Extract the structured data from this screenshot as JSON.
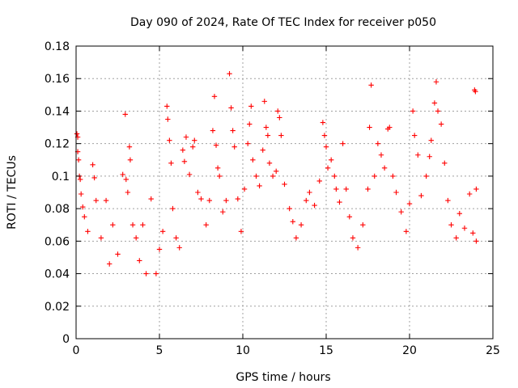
{
  "chart_data": {
    "type": "scatter",
    "title": "Day 090 of 2024, Rate Of TEC Index for receiver p050",
    "xlabel": "GPS time / hours",
    "ylabel": "ROTI / TECUs",
    "xlim": [
      0,
      25
    ],
    "ylim": [
      0,
      0.18
    ],
    "xticks": [
      0,
      5,
      10,
      15,
      20,
      25
    ],
    "yticks": [
      0,
      0.02,
      0.04,
      0.06,
      0.08,
      0.1,
      0.12,
      0.14,
      0.16,
      0.18
    ],
    "ytick_labels": [
      "0",
      "0.02",
      "0.04",
      "0.06",
      "0.08",
      "0.1",
      "0.12",
      "0.14",
      "0.16",
      "0.18"
    ],
    "grid": true,
    "marker": "plus",
    "color": "#ff0000",
    "series": [
      {
        "points": [
          [
            0.05,
            0.126
          ],
          [
            0.1,
            0.124
          ],
          [
            0.1,
            0.115
          ],
          [
            0.15,
            0.11
          ],
          [
            0.2,
            0.1
          ],
          [
            0.25,
            0.098
          ],
          [
            0.3,
            0.089
          ],
          [
            0.4,
            0.081
          ],
          [
            0.5,
            0.075
          ],
          [
            0.7,
            0.066
          ],
          [
            1.0,
            0.107
          ],
          [
            1.1,
            0.099
          ],
          [
            1.2,
            0.085
          ],
          [
            1.5,
            0.062
          ],
          [
            1.8,
            0.085
          ],
          [
            2.0,
            0.046
          ],
          [
            2.2,
            0.07
          ],
          [
            2.5,
            0.052
          ],
          [
            2.8,
            0.101
          ],
          [
            2.95,
            0.138
          ],
          [
            3.0,
            0.098
          ],
          [
            3.1,
            0.09
          ],
          [
            3.2,
            0.118
          ],
          [
            3.25,
            0.11
          ],
          [
            3.4,
            0.07
          ],
          [
            3.6,
            0.062
          ],
          [
            3.8,
            0.048
          ],
          [
            4.0,
            0.07
          ],
          [
            4.2,
            0.04
          ],
          [
            4.5,
            0.086
          ],
          [
            4.8,
            0.04
          ],
          [
            5.0,
            0.055
          ],
          [
            5.2,
            0.066
          ],
          [
            5.45,
            0.143
          ],
          [
            5.5,
            0.135
          ],
          [
            5.6,
            0.122
          ],
          [
            5.7,
            0.108
          ],
          [
            5.8,
            0.08
          ],
          [
            6.0,
            0.062
          ],
          [
            6.2,
            0.056
          ],
          [
            6.4,
            0.116
          ],
          [
            6.5,
            0.109
          ],
          [
            6.6,
            0.124
          ],
          [
            6.8,
            0.101
          ],
          [
            7.0,
            0.118
          ],
          [
            7.1,
            0.122
          ],
          [
            7.3,
            0.09
          ],
          [
            7.5,
            0.086
          ],
          [
            7.8,
            0.07
          ],
          [
            8.0,
            0.085
          ],
          [
            8.2,
            0.128
          ],
          [
            8.3,
            0.149
          ],
          [
            8.4,
            0.119
          ],
          [
            8.5,
            0.105
          ],
          [
            8.6,
            0.1
          ],
          [
            8.8,
            0.078
          ],
          [
            9.0,
            0.085
          ],
          [
            9.2,
            0.163
          ],
          [
            9.3,
            0.142
          ],
          [
            9.4,
            0.128
          ],
          [
            9.5,
            0.118
          ],
          [
            9.7,
            0.086
          ],
          [
            9.9,
            0.066
          ],
          [
            10.1,
            0.092
          ],
          [
            10.3,
            0.12
          ],
          [
            10.4,
            0.132
          ],
          [
            10.5,
            0.143
          ],
          [
            10.6,
            0.11
          ],
          [
            10.8,
            0.1
          ],
          [
            11.0,
            0.094
          ],
          [
            11.2,
            0.116
          ],
          [
            11.3,
            0.146
          ],
          [
            11.4,
            0.13
          ],
          [
            11.5,
            0.125
          ],
          [
            11.6,
            0.108
          ],
          [
            11.8,
            0.1
          ],
          [
            12.0,
            0.103
          ],
          [
            12.1,
            0.14
          ],
          [
            12.2,
            0.136
          ],
          [
            12.3,
            0.125
          ],
          [
            12.5,
            0.095
          ],
          [
            12.8,
            0.08
          ],
          [
            13.0,
            0.072
          ],
          [
            13.2,
            0.062
          ],
          [
            13.5,
            0.07
          ],
          [
            13.8,
            0.085
          ],
          [
            14.0,
            0.09
          ],
          [
            14.3,
            0.082
          ],
          [
            14.6,
            0.097
          ],
          [
            14.8,
            0.133
          ],
          [
            14.9,
            0.125
          ],
          [
            15.0,
            0.118
          ],
          [
            15.1,
            0.105
          ],
          [
            15.3,
            0.11
          ],
          [
            15.5,
            0.1
          ],
          [
            15.6,
            0.092
          ],
          [
            15.8,
            0.084
          ],
          [
            16.0,
            0.12
          ],
          [
            16.2,
            0.092
          ],
          [
            16.4,
            0.075
          ],
          [
            16.6,
            0.062
          ],
          [
            16.9,
            0.056
          ],
          [
            17.2,
            0.07
          ],
          [
            17.5,
            0.092
          ],
          [
            17.6,
            0.13
          ],
          [
            17.7,
            0.156
          ],
          [
            17.9,
            0.1
          ],
          [
            18.1,
            0.12
          ],
          [
            18.3,
            0.113
          ],
          [
            18.5,
            0.105
          ],
          [
            18.7,
            0.129
          ],
          [
            18.8,
            0.13
          ],
          [
            19.0,
            0.1
          ],
          [
            19.2,
            0.09
          ],
          [
            19.5,
            0.078
          ],
          [
            19.8,
            0.066
          ],
          [
            20.0,
            0.083
          ],
          [
            20.2,
            0.14
          ],
          [
            20.3,
            0.125
          ],
          [
            20.5,
            0.113
          ],
          [
            20.7,
            0.088
          ],
          [
            21.0,
            0.1
          ],
          [
            21.2,
            0.112
          ],
          [
            21.3,
            0.122
          ],
          [
            21.5,
            0.145
          ],
          [
            21.6,
            0.158
          ],
          [
            21.7,
            0.14
          ],
          [
            21.9,
            0.132
          ],
          [
            22.1,
            0.108
          ],
          [
            22.3,
            0.085
          ],
          [
            22.5,
            0.07
          ],
          [
            22.8,
            0.062
          ],
          [
            23.0,
            0.077
          ],
          [
            23.3,
            0.068
          ],
          [
            23.6,
            0.089
          ],
          [
            23.8,
            0.065
          ],
          [
            23.9,
            0.153
          ],
          [
            23.95,
            0.152
          ],
          [
            24.0,
            0.092
          ],
          [
            24.0,
            0.06
          ]
        ]
      }
    ]
  }
}
